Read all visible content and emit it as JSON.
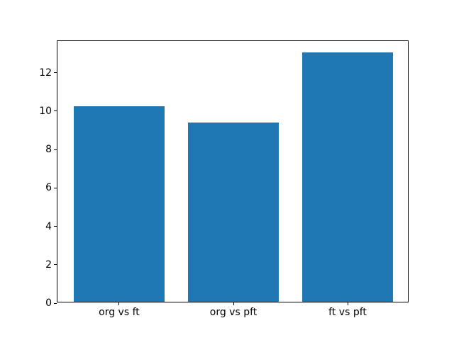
{
  "figure": {
    "background": "#ffffff",
    "text_color": "#000000",
    "spine_color": "#000000"
  },
  "chart_data": {
    "type": "bar",
    "title": "",
    "xlabel": "",
    "ylabel": "",
    "categories": [
      "org vs ft",
      "org vs pft",
      "ft vs pft"
    ],
    "values": [
      10.2,
      9.33,
      13.0
    ],
    "bar_color": "#1f77b4",
    "bar_width_fraction": 0.8,
    "x_centers": [
      0,
      1,
      2
    ],
    "xlim": [
      -0.54,
      2.54
    ],
    "ylim": [
      0,
      13.65
    ],
    "yticks": [
      0,
      2,
      4,
      6,
      8,
      10,
      12
    ],
    "grid": false,
    "legend": null
  }
}
